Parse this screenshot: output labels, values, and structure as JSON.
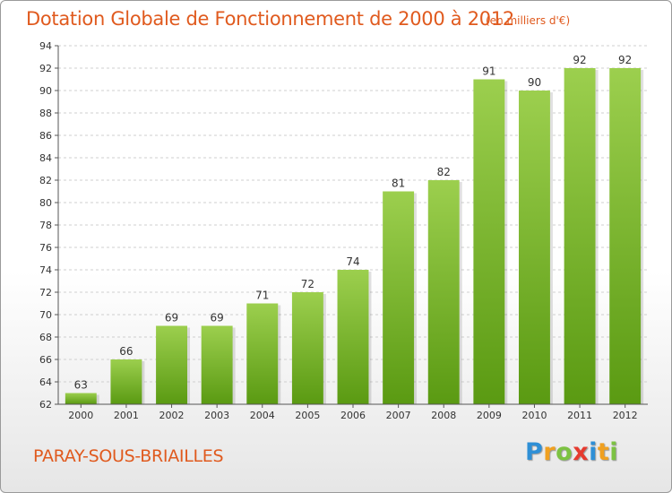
{
  "header": {
    "title": "Dotation Globale de Fonctionnement de 2000 à 2012",
    "unit": "(en milliers d'€)"
  },
  "footer": {
    "commune": "PARAY-SOUS-BRIAILLES",
    "logo_text": "Proxiti",
    "logo_letters": [
      {
        "char": "P",
        "color": "#2e8fd6"
      },
      {
        "char": "r",
        "color": "#f0a020"
      },
      {
        "char": "o",
        "color": "#7cc242"
      },
      {
        "char": "x",
        "color": "#e63a2e"
      },
      {
        "char": "i",
        "color": "#2e8fd6"
      },
      {
        "char": "t",
        "color": "#f0a020"
      },
      {
        "char": "i",
        "color": "#7cc242"
      }
    ]
  },
  "colors": {
    "accent": "#e05a1e",
    "bar_top": "#9ccf4e",
    "bar_bottom": "#5a9a12",
    "grid": "#cfcfcf",
    "axis_text": "#333333"
  },
  "chart_data": {
    "type": "bar",
    "title": "Dotation Globale de Fonctionnement de 2000 à 2012",
    "subtitle": "(en milliers d'€)",
    "xlabel": "",
    "ylabel": "",
    "categories": [
      "2000",
      "2001",
      "2002",
      "2003",
      "2004",
      "2005",
      "2006",
      "2007",
      "2008",
      "2009",
      "2010",
      "2011",
      "2012"
    ],
    "values": [
      63,
      66,
      69,
      69,
      71,
      72,
      74,
      81,
      82,
      91,
      90,
      92,
      92
    ],
    "ylim": [
      62,
      94
    ],
    "yticks": [
      62,
      64,
      66,
      68,
      70,
      72,
      74,
      76,
      78,
      80,
      82,
      84,
      86,
      88,
      90,
      92,
      94
    ],
    "grid": true,
    "legend": "none"
  }
}
